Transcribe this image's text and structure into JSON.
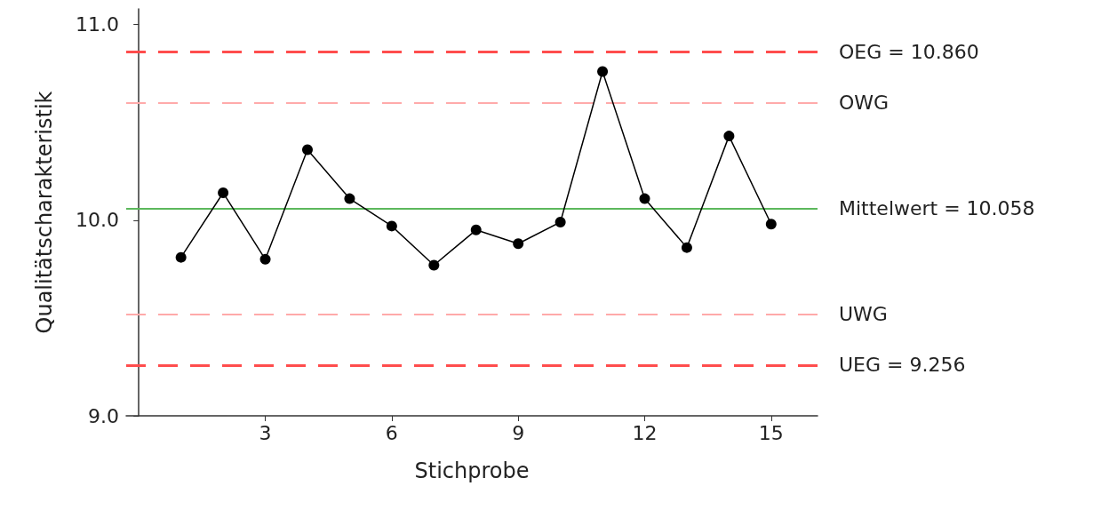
{
  "chart_data": {
    "type": "line",
    "xlabel": "Stichprobe",
    "ylabel": "Qualitätscharakteristik",
    "x": [
      1,
      2,
      3,
      4,
      5,
      6,
      7,
      8,
      9,
      10,
      11,
      12,
      13,
      14,
      15
    ],
    "series": [
      {
        "color": "#000000",
        "values": [
          9.81,
          10.14,
          9.8,
          10.36,
          10.11,
          9.97,
          9.77,
          9.95,
          9.88,
          9.99,
          10.76,
          10.11,
          9.86,
          10.43,
          9.98
        ]
      }
    ],
    "xlim": [
      -0.3,
      16.1
    ],
    "xticks": [
      3,
      6,
      9,
      12,
      15
    ],
    "ylim": [
      9.0,
      11.08
    ],
    "yticks": [
      {
        "value": 9,
        "label": "9.0"
      },
      {
        "value": 10,
        "label": "10.0"
      },
      {
        "value": 11,
        "label": "11.0"
      }
    ],
    "ref_lines": [
      {
        "axis": "y",
        "value": 10.86,
        "label": "OEG = 10.860",
        "color": "#ff4d4d",
        "line_style": "dashed"
      },
      {
        "axis": "y",
        "value": 10.6,
        "label": "OWG",
        "color": "#ffaaaa",
        "line_style": "dashed"
      },
      {
        "axis": "y",
        "value": 10.058,
        "label": "Mittelwert = 10.058",
        "color": "#5cb85c",
        "line_style": "solid"
      },
      {
        "axis": "y",
        "value": 9.52,
        "label": "UWG",
        "color": "#ffaaaa",
        "line_style": "dashed"
      },
      {
        "axis": "y",
        "value": 9.256,
        "label": "UEG = 9.256",
        "color": "#ff4d4d",
        "line_style": "dashed"
      }
    ],
    "grid": false,
    "marker": "circle",
    "line_style": "solid"
  }
}
